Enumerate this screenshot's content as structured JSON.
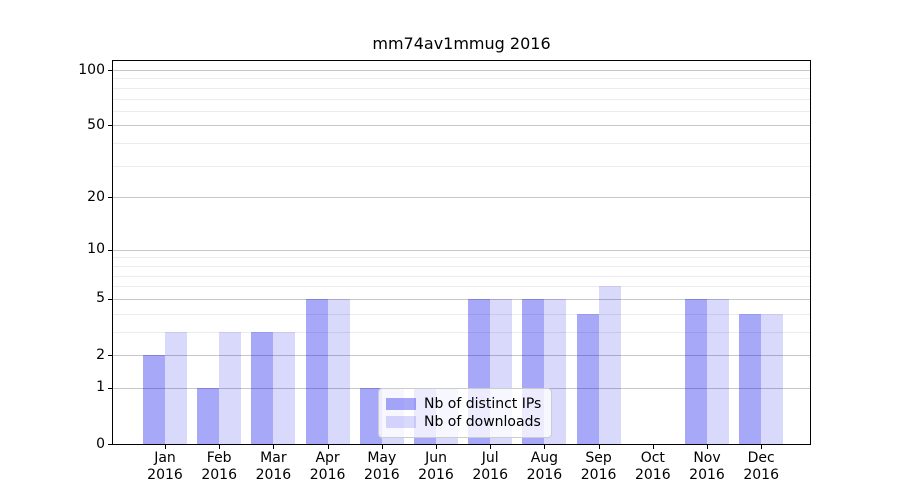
{
  "chart_data": {
    "type": "bar",
    "title": "mm74av1mmug 2016",
    "categories": [
      "Jan 2016",
      "Feb 2016",
      "Mar 2016",
      "Apr 2016",
      "May 2016",
      "Jun 2016",
      "Jul 2016",
      "Aug 2016",
      "Sep 2016",
      "Oct 2016",
      "Nov 2016",
      "Dec 2016"
    ],
    "series": [
      {
        "key": "distinct-ips",
        "name": "Nb of distinct IPs",
        "color": "rgba(0,0,235,0.34)",
        "values": [
          2,
          1,
          3,
          5,
          1,
          1,
          5,
          5,
          4,
          0,
          5,
          4
        ]
      },
      {
        "key": "downloads",
        "name": "Nb of downloads",
        "color": "rgba(0,0,235,0.15)",
        "values": [
          3,
          3,
          3,
          5,
          1,
          1,
          5,
          5,
          6,
          0,
          5,
          4
        ]
      }
    ],
    "xlabel": "",
    "ylabel": "",
    "yscale": "log1p",
    "ylim": [
      0,
      112
    ],
    "yticks": [
      0,
      1,
      2,
      5,
      10,
      20,
      50,
      100
    ],
    "yticks_minor": [
      3,
      4,
      6,
      7,
      8,
      9,
      30,
      40,
      60,
      70,
      80,
      90
    ],
    "grid": "on",
    "legend_position": "lower center",
    "colors": {
      "major_grid": "#c7c7c7",
      "minor_grid": "#ececec",
      "axis": "#000000",
      "background": "#ffffff"
    }
  }
}
